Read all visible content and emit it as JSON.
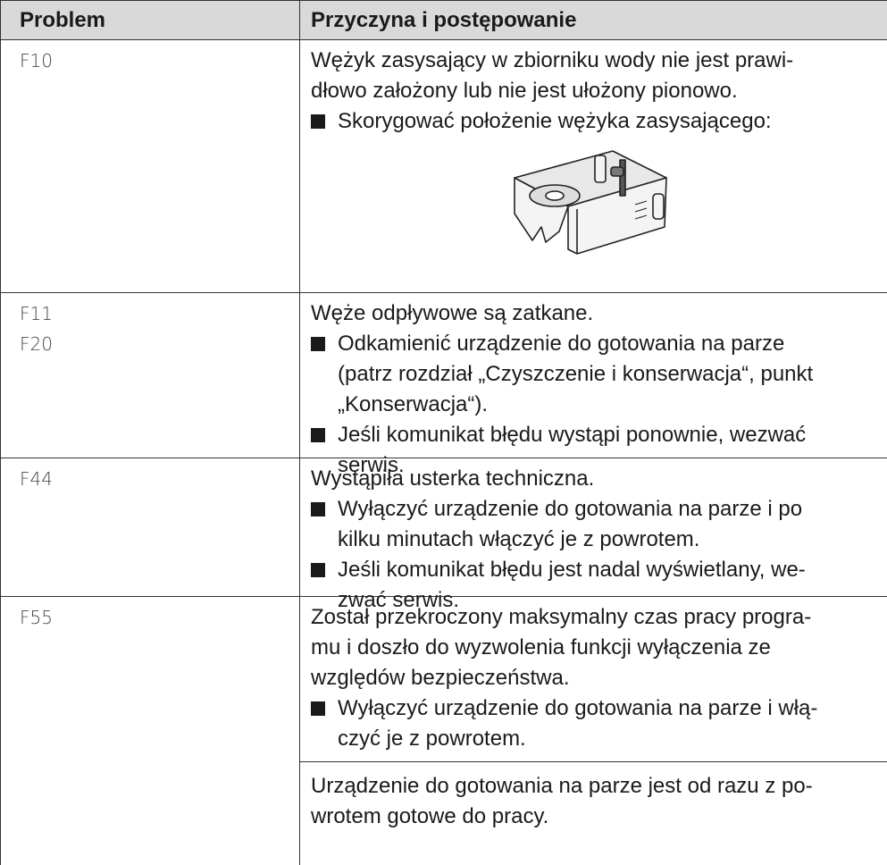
{
  "table": {
    "header": {
      "problem": "Problem",
      "cause": "Przyczyna i postępowanie"
    },
    "rows": [
      {
        "codes": [
          "F10"
        ],
        "sections": [
          [
            {
              "text": [
                "Wężyk zasysający w zbiorniku wody nie jest prawi-",
                "dłowo założony lub nie jest ułożony pionowo."
              ]
            },
            {
              "step": [
                "Skorygować położenie wężyka zasysającego:"
              ]
            }
          ]
        ]
      },
      {
        "codes": [
          "F11",
          "F20"
        ],
        "sections": [
          [
            {
              "text": [
                "Węże odpływowe są zatkane."
              ]
            },
            {
              "step": [
                "Odkamienić urządzenie do gotowania na parze",
                "(patrz rozdział „Czyszczenie i konserwacja“, punkt",
                "„Konserwacja“)."
              ]
            },
            {
              "step": [
                "Jeśli komunikat błędu wystąpi ponownie, wezwać",
                "serwis."
              ]
            }
          ]
        ]
      },
      {
        "codes": [
          "F44"
        ],
        "sections": [
          [
            {
              "text": [
                "Wystąpiła usterka techniczna."
              ]
            },
            {
              "step": [
                "Wyłączyć urządzenie do gotowania na parze i po",
                "kilku minutach włączyć je z powrotem."
              ]
            },
            {
              "step": [
                "Jeśli komunikat błędu jest nadal wyświetlany, we-",
                "zwać serwis."
              ]
            }
          ]
        ]
      },
      {
        "codes": [
          "F55"
        ],
        "sections": [
          [
            {
              "text": [
                "Został przekroczony maksymalny czas pracy progra-",
                "mu i doszło do wyzwolenia funkcji wyłączenia ze",
                "względów bezpieczeństwa."
              ]
            },
            {
              "step": [
                "Wyłączyć urządzenie do gotowania na parze i włą-",
                "czyć je z powrotem."
              ]
            }
          ],
          [
            {
              "text": [
                "Urządzenie do gotowania na parze jest od razu z po-",
                "wrotem gotowe do pracy."
              ]
            }
          ]
        ]
      }
    ]
  }
}
